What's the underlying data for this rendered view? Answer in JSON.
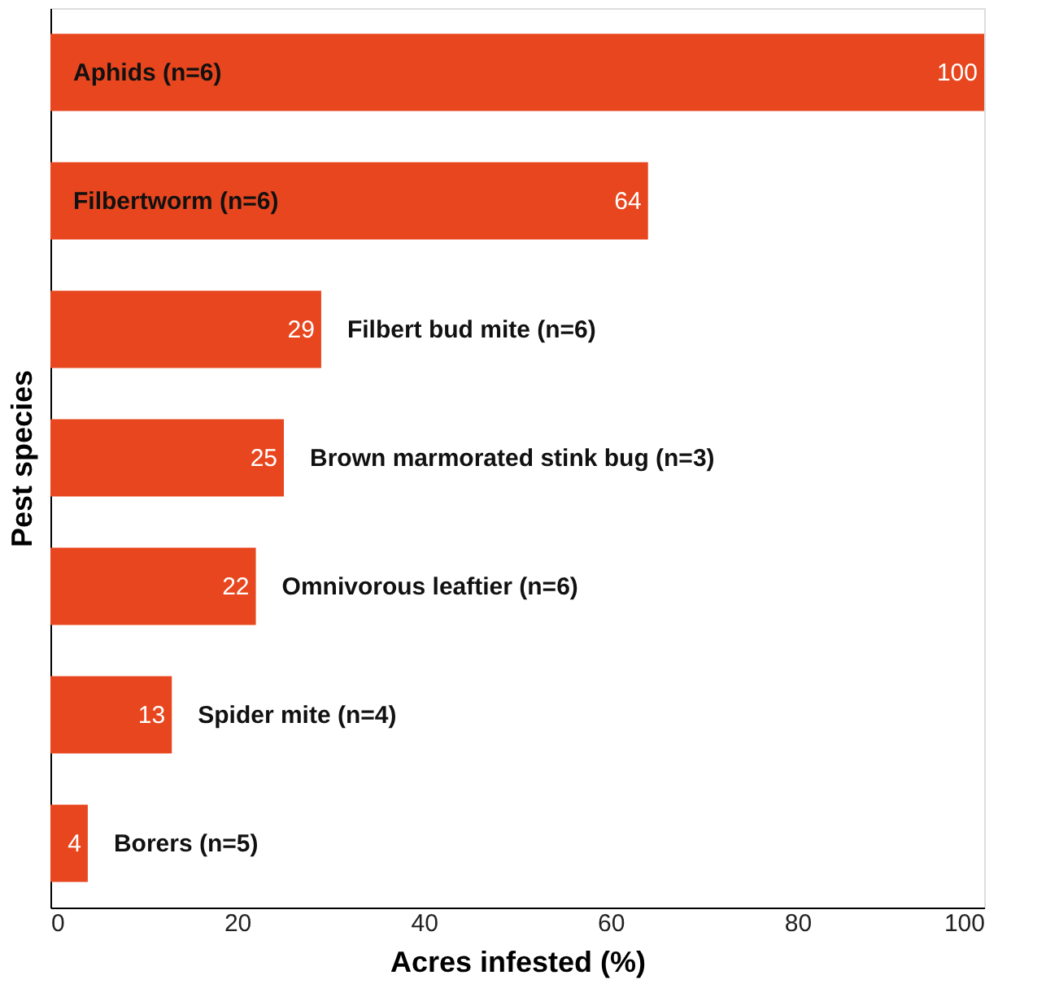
{
  "chart_data": {
    "type": "bar",
    "orientation": "horizontal",
    "xlabel": "Acres infested (%)",
    "ylabel": "Pest species",
    "categories": [
      "Aphids (n=6)",
      "Filbertworm (n=6)",
      "Filbert bud mite (n=6)",
      "Brown marmorated stink bug (n=3)",
      "Omnivorous leaftier (n=6)",
      "Spider mite (n=4)",
      "Borers (n=5)"
    ],
    "values": [
      100,
      64,
      29,
      25,
      22,
      13,
      4
    ],
    "color": "#e8461e",
    "data_labels": true,
    "xlim": [
      0,
      100
    ],
    "xticks": [
      0,
      20,
      40,
      60,
      80,
      100
    ],
    "grid": false
  }
}
